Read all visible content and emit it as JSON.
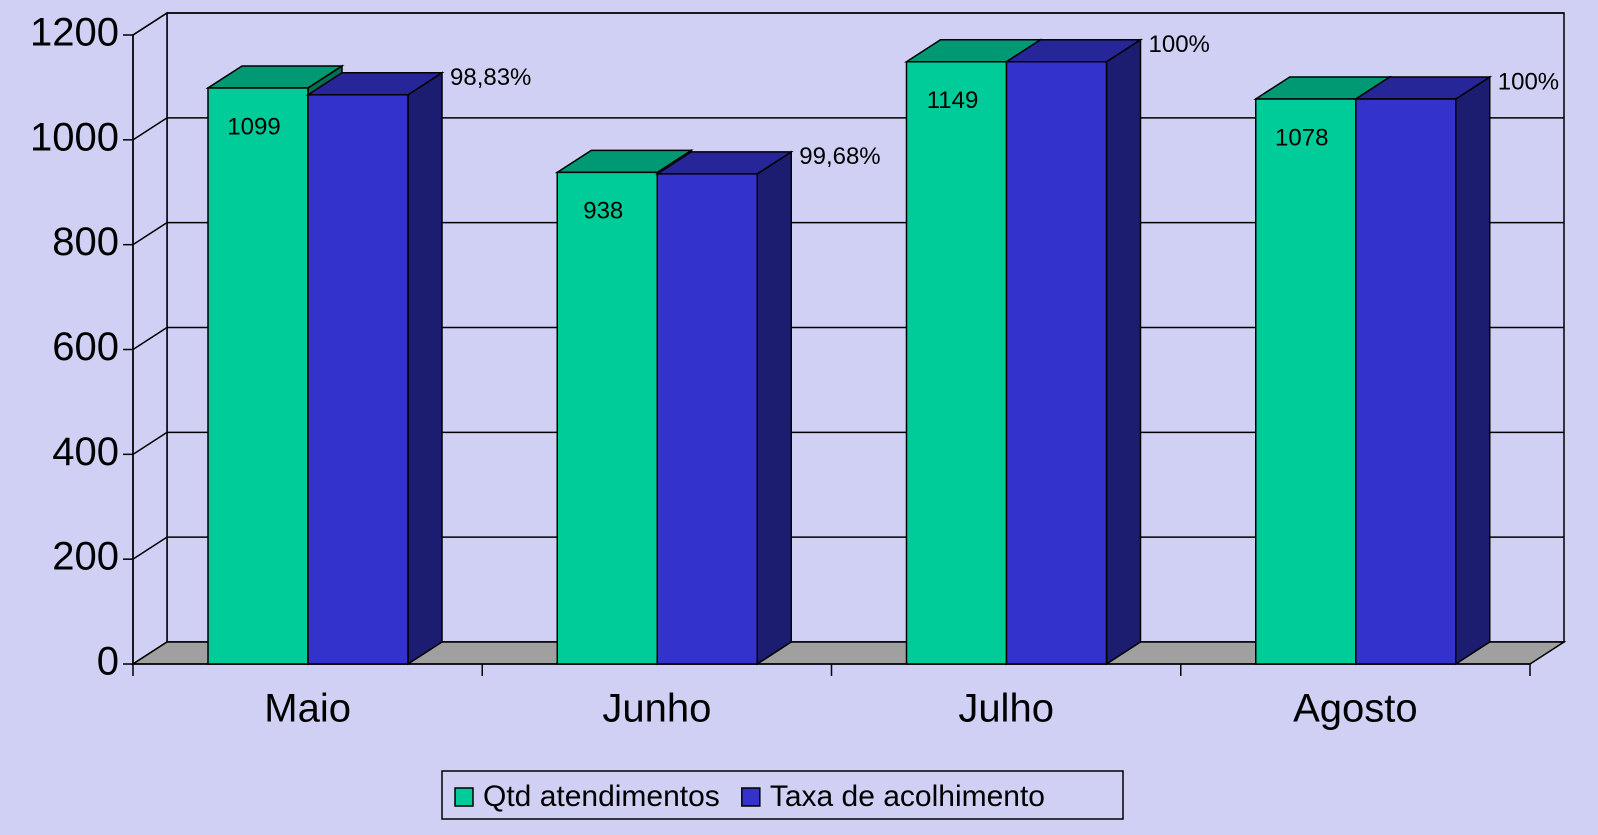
{
  "chart_data": {
    "type": "bar3d",
    "categories": [
      "Maio",
      "Junho",
      "Julho",
      "Agosto"
    ],
    "series": [
      {
        "name": "Qtd atendimentos",
        "color": "#00CC99",
        "values": [
          1099,
          938,
          1149,
          1078
        ]
      },
      {
        "name": "Taxa de acolhimento",
        "color": "#3333CC",
        "values": [
          1086,
          935,
          1149,
          1078
        ]
      }
    ],
    "annotations": [
      "98,83%",
      "99,68%",
      "100%",
      "100%"
    ],
    "ylim": [
      0,
      1200
    ],
    "yticks": [
      0,
      200,
      400,
      600,
      800,
      1000,
      1200
    ],
    "grid": true,
    "legend": "bottom"
  }
}
